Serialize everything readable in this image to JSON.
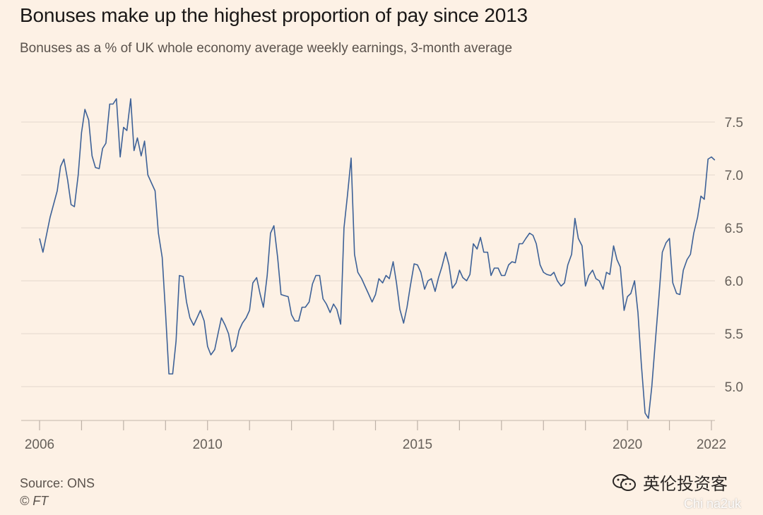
{
  "header": {
    "title": "Bonuses make up the highest proportion of pay since 2013",
    "subtitle": "Bonuses as a % of UK whole economy average weekly earnings, 3-month average"
  },
  "footer": {
    "source": "Source: ONS",
    "credit": "© FT",
    "watermark": "英伦投资客",
    "watermark2": "Chi na2uk"
  },
  "colors": {
    "background": "#fdf1e5",
    "line": "#3d6197",
    "grid": "#e9ddd2",
    "axis_text": "#66605a"
  },
  "chart_data": {
    "type": "line",
    "title": "Bonuses make up the highest proportion of pay since 2013",
    "subtitle": "Bonuses as a % of UK whole economy average weekly earnings, 3-month average",
    "xlabel": "",
    "ylabel": "",
    "xlim": [
      2006.0,
      2022.1
    ],
    "ylim": [
      4.7,
      7.8
    ],
    "yticks": [
      5.0,
      5.5,
      6.0,
      6.5,
      7.0,
      7.5
    ],
    "ytick_labels": [
      "5.0",
      "5.5",
      "6.0",
      "6.5",
      "7.0",
      "7.5"
    ],
    "xtick_labels": [
      {
        "value": 2006,
        "label": "2006"
      },
      {
        "value": 2010,
        "label": "2010"
      },
      {
        "value": 2015,
        "label": "2015"
      },
      {
        "value": 2020,
        "label": "2020"
      },
      {
        "value": 2022,
        "label": "2022"
      }
    ],
    "minor_xticks": [
      2006,
      2007,
      2008,
      2009,
      2010,
      2011,
      2012,
      2013,
      2014,
      2015,
      2016,
      2017,
      2018,
      2019,
      2020,
      2021,
      2022
    ],
    "grid": "horizontal",
    "y_axis_position": "right",
    "series": [
      {
        "x": [
          2006.0,
          2006.08,
          2006.25,
          2006.42,
          2006.5,
          2006.58,
          2006.67,
          2006.75,
          2006.83,
          2006.92,
          2007.0,
          2007.08,
          2007.17,
          2007.25,
          2007.33,
          2007.42,
          2007.5,
          2007.58,
          2007.67,
          2007.75,
          2007.83,
          2007.92,
          2008.0,
          2008.08,
          2008.17,
          2008.25,
          2008.33,
          2008.42,
          2008.5,
          2008.58,
          2008.67,
          2008.75,
          2008.83,
          2008.92,
          2009.0,
          2009.08,
          2009.17,
          2009.25,
          2009.33,
          2009.42,
          2009.5,
          2009.58,
          2009.67,
          2009.75,
          2009.83,
          2009.92,
          2010.0,
          2010.08,
          2010.17,
          2010.25,
          2010.33,
          2010.42,
          2010.5,
          2010.58,
          2010.67,
          2010.75,
          2010.83,
          2010.92,
          2011.0,
          2011.08,
          2011.17,
          2011.25,
          2011.33,
          2011.42,
          2011.5,
          2011.58,
          2011.67,
          2011.75,
          2011.83,
          2011.92,
          2012.0,
          2012.08,
          2012.17,
          2012.25,
          2012.33,
          2012.42,
          2012.5,
          2012.58,
          2012.67,
          2012.75,
          2012.83,
          2012.92,
          2013.0,
          2013.08,
          2013.17,
          2013.25,
          2013.33,
          2013.42,
          2013.5,
          2013.58,
          2013.67,
          2013.75,
          2013.83,
          2013.92,
          2014.0,
          2014.08,
          2014.17,
          2014.25,
          2014.33,
          2014.42,
          2014.5,
          2014.58,
          2014.67,
          2014.75,
          2014.83,
          2014.92,
          2015.0,
          2015.08,
          2015.17,
          2015.25,
          2015.33,
          2015.42,
          2015.5,
          2015.58,
          2015.67,
          2015.75,
          2015.83,
          2015.92,
          2016.0,
          2016.08,
          2016.17,
          2016.25,
          2016.33,
          2016.42,
          2016.5,
          2016.58,
          2016.67,
          2016.75,
          2016.83,
          2016.92,
          2017.0,
          2017.08,
          2017.17,
          2017.25,
          2017.33,
          2017.42,
          2017.5,
          2017.58,
          2017.67,
          2017.75,
          2017.83,
          2017.92,
          2018.0,
          2018.08,
          2018.17,
          2018.25,
          2018.33,
          2018.42,
          2018.5,
          2018.58,
          2018.67,
          2018.75,
          2018.83,
          2018.92,
          2019.0,
          2019.08,
          2019.17,
          2019.25,
          2019.33,
          2019.42,
          2019.5,
          2019.58,
          2019.67,
          2019.75,
          2019.83,
          2019.92,
          2020.0,
          2020.08,
          2020.17,
          2020.25,
          2020.33,
          2020.42,
          2020.5,
          2020.58,
          2020.67,
          2020.75,
          2020.83,
          2020.92,
          2021.0,
          2021.08,
          2021.17,
          2021.25,
          2021.33,
          2021.42,
          2021.5,
          2021.58,
          2021.67,
          2021.75,
          2021.83,
          2021.92,
          2022.0,
          2022.08
        ],
        "values": [
          6.4,
          6.27,
          6.6,
          6.85,
          7.08,
          7.15,
          6.95,
          6.72,
          6.7,
          7.0,
          7.4,
          7.62,
          7.52,
          7.18,
          7.07,
          7.06,
          7.25,
          7.3,
          7.67,
          7.67,
          7.72,
          7.17,
          7.45,
          7.42,
          7.72,
          7.23,
          7.35,
          7.18,
          7.32,
          7.0,
          6.92,
          6.85,
          6.45,
          6.22,
          5.7,
          5.12,
          5.12,
          5.43,
          6.05,
          6.04,
          5.8,
          5.65,
          5.58,
          5.65,
          5.72,
          5.62,
          5.38,
          5.3,
          5.35,
          5.5,
          5.65,
          5.58,
          5.5,
          5.33,
          5.38,
          5.53,
          5.6,
          5.65,
          5.72,
          5.98,
          6.03,
          5.88,
          5.75,
          6.05,
          6.45,
          6.52,
          6.22,
          5.87,
          5.86,
          5.85,
          5.68,
          5.62,
          5.62,
          5.75,
          5.75,
          5.8,
          5.97,
          6.05,
          6.05,
          5.83,
          5.78,
          5.7,
          5.78,
          5.73,
          5.59,
          6.5,
          6.8,
          7.16,
          6.25,
          6.08,
          6.02,
          5.95,
          5.88,
          5.8,
          5.87,
          6.02,
          5.98,
          6.05,
          6.02,
          6.18,
          5.98,
          5.73,
          5.6,
          5.75,
          5.95,
          6.16,
          6.15,
          6.08,
          5.92,
          6.0,
          6.02,
          5.9,
          6.03,
          6.13,
          6.27,
          6.15,
          5.93,
          5.98,
          6.1,
          6.03,
          6.0,
          6.06,
          6.35,
          6.3,
          6.41,
          6.27,
          6.27,
          6.05,
          6.12,
          6.12,
          6.05,
          6.05,
          6.15,
          6.18,
          6.17,
          6.35,
          6.35,
          6.4,
          6.45,
          6.43,
          6.35,
          6.15,
          6.08,
          6.06,
          6.05,
          6.08,
          6.0,
          5.95,
          5.98,
          6.15,
          6.25,
          6.59,
          6.4,
          6.33,
          5.95,
          6.05,
          6.1,
          6.02,
          6.0,
          5.92,
          6.08,
          6.06,
          6.33,
          6.2,
          6.13,
          5.72,
          5.85,
          5.88,
          6.0,
          5.7,
          5.22,
          4.75,
          4.7,
          5.0,
          5.45,
          5.85,
          6.27,
          6.36,
          6.4,
          5.98,
          5.88,
          5.87,
          6.1,
          6.2,
          6.25,
          6.45,
          6.6,
          6.8,
          6.77,
          7.15,
          7.17,
          7.14
        ]
      }
    ]
  }
}
